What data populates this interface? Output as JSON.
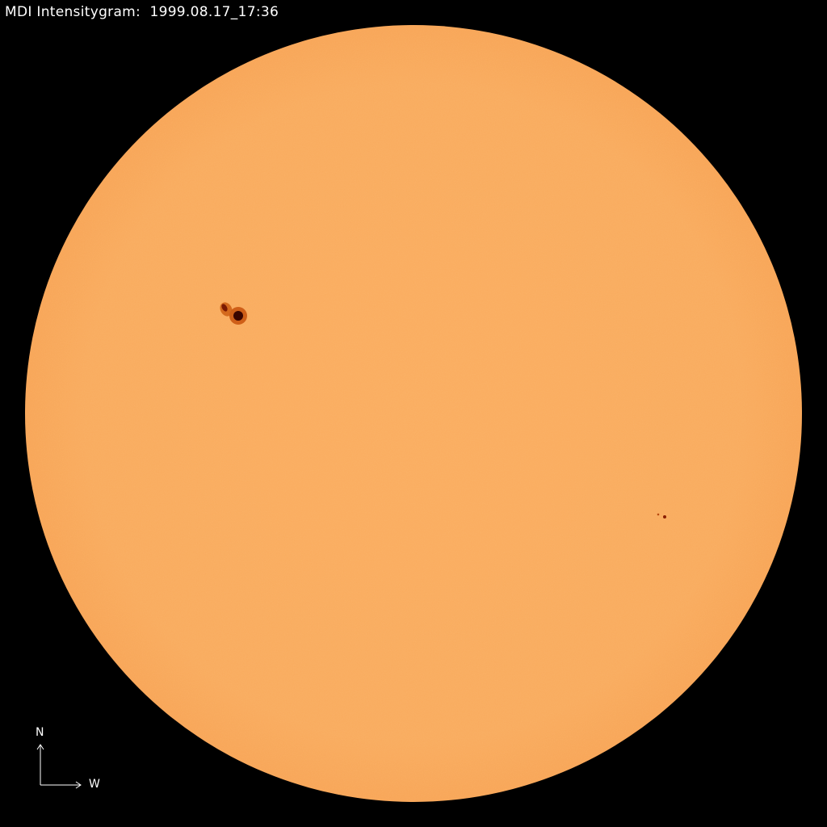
{
  "title": "MDI Intensitygram:  1999.08.17_17:36",
  "compass": {
    "north": "N",
    "west": "W"
  },
  "colors": {
    "background": "#000000",
    "disk": "#f9aa5c",
    "limb": "#f5a04c",
    "sunspot_penumbra": "#c8560f",
    "sunspot_umbra": "#3a0500",
    "text": "#ffffff"
  }
}
